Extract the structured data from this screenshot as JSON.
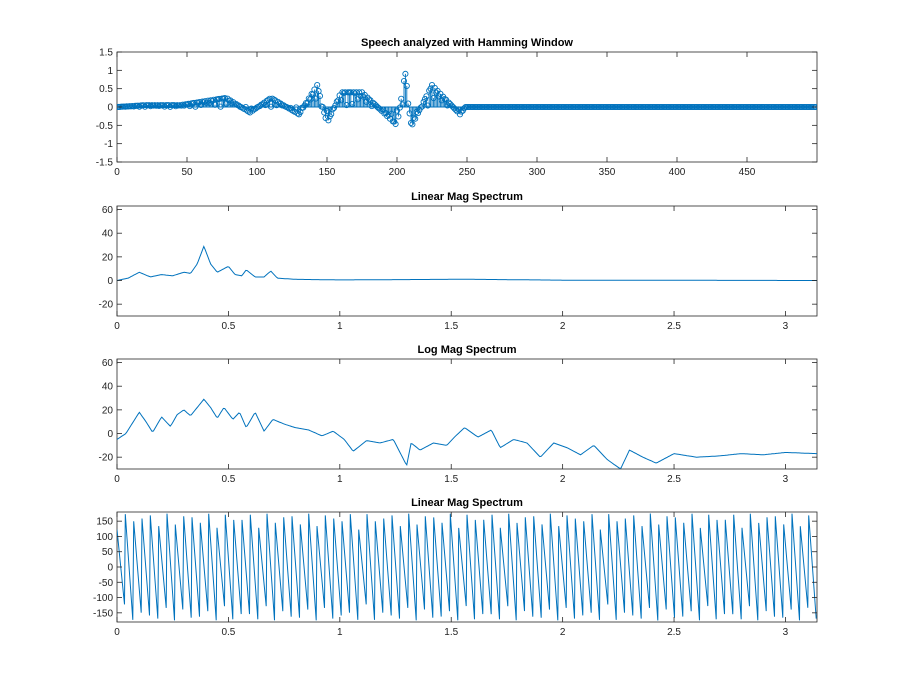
{
  "chart_data": [
    {
      "type": "stem",
      "title": "Speech analyzed with Hamming Window",
      "xlabel": "",
      "ylabel": "",
      "xlim": [
        0,
        500
      ],
      "ylim": [
        -1.5,
        1.5
      ],
      "xticks": [
        0,
        50,
        100,
        150,
        200,
        250,
        300,
        350,
        400,
        450
      ],
      "xtick_labels": [
        "0",
        "50",
        "100",
        "150",
        "200",
        "250",
        "300",
        "350",
        "400",
        "450"
      ],
      "yticks": [
        -1.5,
        -1,
        -0.5,
        0,
        0.5,
        1,
        1.5
      ],
      "ytick_labels": [
        "-1.5",
        "-1",
        "-0.5",
        "0",
        "0.5",
        "1",
        "1.5"
      ],
      "n_samples": 500,
      "nonzero_samples": 250,
      "key_points": [
        [
          0,
          0
        ],
        [
          20,
          0.05
        ],
        [
          45,
          0.05
        ],
        [
          78,
          0.25
        ],
        [
          95,
          -0.15
        ],
        [
          110,
          0.25
        ],
        [
          130,
          -0.2
        ],
        [
          143,
          0.6
        ],
        [
          150,
          -0.45
        ],
        [
          160,
          0.4
        ],
        [
          175,
          0.4
        ],
        [
          200,
          -0.5
        ],
        [
          206,
          0.95
        ],
        [
          210,
          -0.55
        ],
        [
          225,
          0.6
        ],
        [
          245,
          -0.2
        ],
        [
          249,
          0
        ],
        [
          499,
          0
        ]
      ],
      "color": "#0072BD"
    },
    {
      "type": "line",
      "title": "Linear Mag Spectrum",
      "xlabel": "",
      "ylabel": "",
      "xlim": [
        0,
        3.1416
      ],
      "ylim": [
        -30,
        63
      ],
      "xticks": [
        0,
        0.5,
        1,
        1.5,
        2,
        2.5,
        3
      ],
      "xtick_labels": [
        "0",
        "0.5",
        "1",
        "1.5",
        "2",
        "2.5",
        "3"
      ],
      "yticks": [
        -20,
        0,
        20,
        40,
        60
      ],
      "ytick_labels": [
        "-20",
        "0",
        "20",
        "40",
        "60"
      ],
      "x": [
        0,
        0.05,
        0.1,
        0.15,
        0.2,
        0.25,
        0.3,
        0.33,
        0.36,
        0.39,
        0.42,
        0.45,
        0.48,
        0.5,
        0.53,
        0.56,
        0.58,
        0.62,
        0.66,
        0.69,
        0.72,
        0.8,
        1.0,
        1.5,
        1.6,
        2.0,
        2.5,
        3.14
      ],
      "y": [
        0,
        2,
        7,
        3,
        5,
        4,
        7,
        6,
        14,
        29,
        14,
        7,
        10,
        12,
        5,
        4,
        9,
        3,
        3,
        8,
        2,
        1,
        0.5,
        1,
        1,
        0.3,
        0.2,
        0
      ],
      "color": "#0072BD"
    },
    {
      "type": "line",
      "title": "Log Mag Spectrum",
      "xlabel": "",
      "ylabel": "",
      "xlim": [
        0,
        3.1416
      ],
      "ylim": [
        -30,
        63
      ],
      "xticks": [
        0,
        0.5,
        1,
        1.5,
        2,
        2.5,
        3
      ],
      "xtick_labels": [
        "0",
        "0.5",
        "1",
        "1.5",
        "2",
        "2.5",
        "3"
      ],
      "yticks": [
        -20,
        0,
        20,
        40,
        60
      ],
      "ytick_labels": [
        "-20",
        "0",
        "20",
        "40",
        "60"
      ],
      "x": [
        0,
        0.04,
        0.08,
        0.1,
        0.13,
        0.16,
        0.2,
        0.24,
        0.27,
        0.3,
        0.33,
        0.36,
        0.39,
        0.42,
        0.45,
        0.48,
        0.52,
        0.55,
        0.58,
        0.62,
        0.66,
        0.7,
        0.75,
        0.8,
        0.86,
        0.92,
        0.97,
        1.02,
        1.06,
        1.12,
        1.18,
        1.24,
        1.3,
        1.32,
        1.36,
        1.42,
        1.48,
        1.52,
        1.56,
        1.62,
        1.68,
        1.72,
        1.78,
        1.84,
        1.9,
        1.96,
        2.02,
        2.08,
        2.14,
        2.2,
        2.26,
        2.3,
        2.36,
        2.42,
        2.5,
        2.6,
        2.7,
        2.8,
        2.9,
        3.0,
        3.14
      ],
      "y": [
        -5,
        0,
        12,
        18,
        10,
        1,
        14,
        6,
        16,
        20,
        15,
        22,
        29,
        22,
        13,
        22,
        12,
        18,
        5,
        18,
        2,
        12,
        8,
        5,
        3,
        -2,
        2,
        -5,
        -15,
        -6,
        -8,
        -5,
        -27,
        -8,
        -14,
        -8,
        -10,
        -2,
        5,
        -3,
        3,
        -12,
        -5,
        -8,
        -20,
        -8,
        -12,
        -18,
        -10,
        -22,
        -30,
        -14,
        -20,
        -25,
        -17,
        -20,
        -19,
        -17,
        -18,
        -16,
        -17
      ],
      "color": "#0072BD"
    },
    {
      "type": "line",
      "title": "Linear Mag Spectrum",
      "xlabel": "",
      "ylabel": "",
      "xlim": [
        0,
        3.1416
      ],
      "ylim": [
        -180,
        180
      ],
      "xticks": [
        0,
        0.5,
        1,
        1.5,
        2,
        2.5,
        3
      ],
      "xtick_labels": [
        "0",
        "0.5",
        "1",
        "1.5",
        "2",
        "2.5",
        "3"
      ],
      "yticks": [
        -150,
        -100,
        -50,
        0,
        50,
        100,
        150
      ],
      "ytick_labels": [
        "-150",
        "-100",
        "-50",
        "0",
        "50",
        "100",
        "150"
      ],
      "pattern": "sawtooth",
      "cycles": 84,
      "y_range": [
        -175,
        175
      ],
      "color": "#0072BD"
    }
  ]
}
